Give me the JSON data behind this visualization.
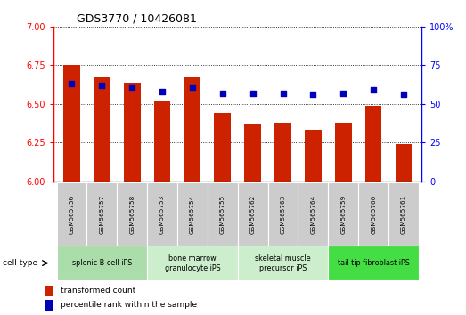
{
  "title": "GDS3770 / 10426081",
  "samples": [
    "GSM565756",
    "GSM565757",
    "GSM565758",
    "GSM565753",
    "GSM565754",
    "GSM565755",
    "GSM565762",
    "GSM565763",
    "GSM565764",
    "GSM565759",
    "GSM565760",
    "GSM565761"
  ],
  "transformed_count": [
    6.75,
    6.68,
    6.64,
    6.52,
    6.67,
    6.44,
    6.37,
    6.38,
    6.33,
    6.38,
    6.49,
    6.24
  ],
  "percentile_rank": [
    63,
    62,
    61,
    58,
    61,
    57,
    57,
    57,
    56,
    57,
    59,
    56
  ],
  "cell_types": [
    {
      "label": "splenic B cell iPS",
      "start": 0,
      "end": 3,
      "color": "#aaddaa"
    },
    {
      "label": "bone marrow\ngranulocyte iPS",
      "start": 3,
      "end": 6,
      "color": "#cceecc"
    },
    {
      "label": "skeletal muscle\nprecursor iPS",
      "start": 6,
      "end": 9,
      "color": "#cceecc"
    },
    {
      "label": "tail tip fibroblast iPS",
      "start": 9,
      "end": 12,
      "color": "#44dd44"
    }
  ],
  "ylim_left": [
    6.0,
    7.0
  ],
  "ylim_right": [
    0,
    100
  ],
  "yticks_left": [
    6.0,
    6.25,
    6.5,
    6.75,
    7.0
  ],
  "yticks_right": [
    0,
    25,
    50,
    75,
    100
  ],
  "bar_color": "#cc2200",
  "dot_color": "#0000bb",
  "bar_bottom": 6.0,
  "cell_type_label": "cell type",
  "legend_label_bar": "transformed count",
  "legend_label_dot": "percentile rank within the sample",
  "sample_box_color": "#cccccc",
  "tick_fontsize": 7,
  "label_fontsize": 7,
  "bar_width": 0.55
}
